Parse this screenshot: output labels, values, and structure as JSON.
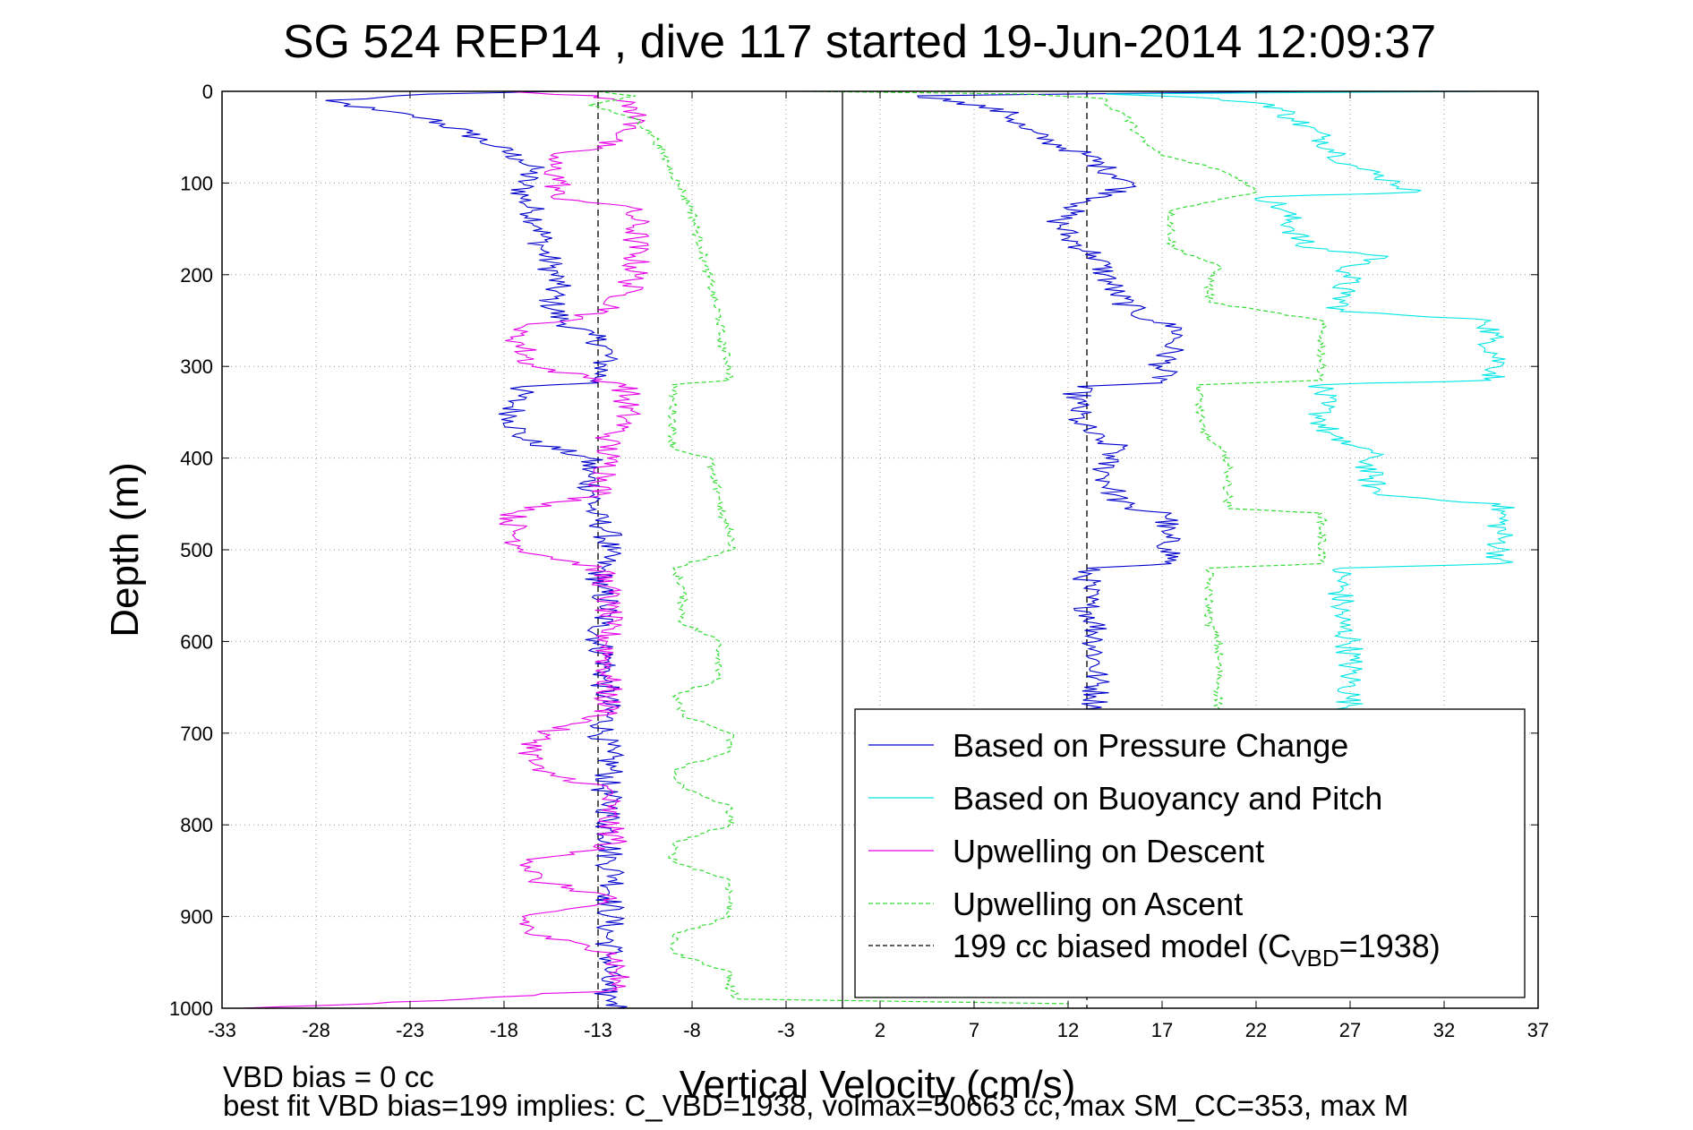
{
  "chart_data": {
    "type": "line",
    "title": "SG 524   REP14  , dive 117 started 19-Jun-2014 12:09:37",
    "xlabel": "Vertical Velocity (cm/s)",
    "ylabel": "Depth (m)",
    "xlim": [
      -33,
      37
    ],
    "ylim": [
      0,
      1000
    ],
    "y_reversed": true,
    "grid": true,
    "legend_position": "bottom-right",
    "xticks": [
      -33,
      -28,
      -23,
      -18,
      -13,
      -8,
      -3,
      2,
      7,
      12,
      17,
      22,
      27,
      32,
      37
    ],
    "yticks": [
      0,
      100,
      200,
      300,
      400,
      500,
      600,
      700,
      800,
      900,
      1000
    ],
    "vertical_lines": [
      {
        "name": "199 cc biased model (C_VBD=1938)",
        "x": -13,
        "style": "dashed",
        "color": "#000000"
      },
      {
        "name": "199 cc biased model (C_VBD=1938)",
        "x": 13,
        "style": "dashed",
        "color": "#000000"
      },
      {
        "name": "",
        "x": 0,
        "style": "solid",
        "color": "#000000"
      }
    ],
    "series": [
      {
        "name": "Based on Pressure Change",
        "color": "#0000cc",
        "style": "solid",
        "profiles": [
          {
            "depth": [
              0,
              3,
              10,
              20,
              30,
              45,
              60,
              75,
              85,
              100,
              115,
              130,
              150,
              170,
              190,
              210,
              230,
              250,
              265,
              280,
              300,
              318,
              322,
              340,
              360,
              380,
              400,
              420,
              440,
              460,
              480,
              500,
              520,
              540,
              560,
              580,
              600,
              620,
              640,
              660,
              680,
              700,
              720,
              740,
              760,
              780,
              800,
              820,
              840,
              860,
              880,
              900,
              920,
              940,
              960,
              980,
              990,
              995,
              1000
            ],
            "velocity": [
              -15,
              -22,
              -27.5,
              -25,
              -22,
              -20,
              -18.5,
              -17,
              -16.5,
              -17,
              -17,
              -16.5,
              -16,
              -16,
              -15.5,
              -15.2,
              -15.5,
              -15,
              -13.5,
              -12.5,
              -12.7,
              -13,
              -17,
              -17.5,
              -17.5,
              -17,
              -13.5,
              -13.5,
              -13.2,
              -13.3,
              -12.5,
              -12.5,
              -12.8,
              -13,
              -12.5,
              -12.8,
              -13,
              -12.5,
              -12.7,
              -12.6,
              -12.5,
              -12.8,
              -12.5,
              -12.3,
              -12.7,
              -12.3,
              -12.5,
              -12.3,
              -12.4,
              -12.0,
              -12.4,
              -12.3,
              -12.5,
              -12.3,
              -12.5,
              -12.8,
              -12.3,
              -12,
              -12
            ]
          },
          {
            "depth": [
              0,
              5,
              12,
              25,
              40,
              55,
              70,
              85,
              100,
              115,
              125,
              140,
              160,
              180,
              200,
              220,
              240,
              250,
              260,
              280,
              300,
              318,
              322,
              340,
              360,
              380,
              390,
              400,
              420,
              440,
              455,
              460,
              480,
              500,
              515,
              520,
              540,
              560,
              580,
              600,
              620,
              640,
              660,
              680
            ],
            "velocity": [
              25,
              4,
              6.5,
              9,
              9.5,
              11,
              13,
              14,
              15.5,
              14,
              12.5,
              11.5,
              12,
              13.5,
              14,
              14.5,
              15.5,
              16.5,
              18,
              17.5,
              17,
              17,
              12.5,
              12.5,
              12.5,
              13.5,
              15,
              14,
              14,
              14.5,
              15,
              17.5,
              17,
              17.5,
              17.5,
              13,
              13,
              13,
              13.5,
              13.5,
              13.5,
              13.5,
              13.5,
              13.5
            ]
          }
        ]
      },
      {
        "name": "Based on Buoyancy and Pitch",
        "color": "#00e5e5",
        "style": "solid",
        "profiles": [
          {
            "depth": [
              0,
              3,
              8,
              15,
              30,
              50,
              70,
              80,
              100,
              110,
              115,
              130,
              150,
              170,
              180,
              190,
              200,
              220,
              240,
              250,
              270,
              300,
              315,
              320,
              340,
              360,
              380,
              390,
              400,
              420,
              440,
              450,
              470,
              490,
              510,
              515,
              520,
              540,
              560,
              580,
              600,
              620,
              640,
              660,
              680
            ],
            "velocity": [
              35,
              14,
              20,
              23,
              24,
              25.5,
              26.5,
              27,
              29.5,
              30.5,
              22.5,
              23.5,
              24,
              24.5,
              29,
              27,
              27,
              26.5,
              26.5,
              34.5,
              34.5,
              35,
              34.5,
              25.5,
              25.5,
              25.5,
              26,
              28,
              28,
              28,
              28.5,
              35,
              35,
              35,
              35,
              35,
              26.5,
              26.5,
              26.5,
              26.5,
              27,
              27,
              27,
              27,
              27
            ]
          }
        ]
      },
      {
        "name": "Upwelling on Descent",
        "color": "#e600e6",
        "style": "solid",
        "profiles": [
          {
            "depth": [
              0,
              5,
              10,
              20,
              30,
              40,
              50,
              60,
              70,
              80,
              100,
              115,
              125,
              140,
              160,
              180,
              200,
              220,
              240,
              260,
              280,
              300,
              320,
              340,
              360,
              380,
              400,
              420,
              440,
              460,
              480,
              500,
              520,
              540,
              560,
              580,
              600,
              620,
              640,
              660,
              680,
              700,
              720,
              740,
              760,
              780,
              800,
              820,
              840,
              860,
              880,
              900,
              920,
              940,
              960,
              980,
              990,
              995,
              1000
            ],
            "velocity": [
              -18,
              -13,
              -12,
              -11,
              -11,
              -11,
              -12,
              -13,
              -15.5,
              -15.5,
              -15,
              -15.5,
              -11.5,
              -11,
              -11,
              -11,
              -11,
              -11.5,
              -12.5,
              -17.5,
              -17,
              -16.5,
              -11.5,
              -11.5,
              -11.5,
              -12.5,
              -12.5,
              -12.5,
              -13,
              -17.5,
              -17.5,
              -17,
              -13,
              -12.5,
              -12.5,
              -12.5,
              -12.5,
              -12.5,
              -12.5,
              -12.5,
              -12.5,
              -16,
              -16.5,
              -16.5,
              -12.5,
              -12.5,
              -12.5,
              -12,
              -16.5,
              -16.5,
              -12,
              -17,
              -16.5,
              -12,
              -12,
              -12,
              -20,
              -25,
              -32
            ]
          }
        ]
      },
      {
        "name": "Upwelling on Ascent",
        "color": "#33dd33",
        "style": "dashed",
        "profiles": [
          {
            "depth": [
              0,
              5,
              15,
              30,
              50,
              70,
              90,
              110,
              130,
              150,
              170,
              190,
              210,
              230,
              250,
              270,
              300,
              315,
              320,
              340,
              370,
              390,
              400,
              420,
              440,
              460,
              480,
              500,
              520,
              540,
              560,
              580,
              600,
              620,
              640,
              660,
              680,
              700,
              720,
              740,
              760,
              780,
              800,
              820,
              840,
              860,
              880,
              900,
              920,
              940,
              960,
              980,
              990,
              995
            ],
            "velocity": [
              -13,
              -11,
              -13.5,
              -11,
              -10,
              -9.5,
              -9,
              -8.5,
              -8,
              -7.8,
              -7.5,
              -7.3,
              -7,
              -6.8,
              -6.5,
              -6.5,
              -6,
              -6,
              -9,
              -9,
              -9,
              -9,
              -7,
              -7,
              -6.5,
              -6.5,
              -6,
              -5.8,
              -9,
              -8.5,
              -8.5,
              -8.5,
              -6.5,
              -6.5,
              -6.5,
              -9,
              -8.5,
              -6,
              -6,
              -9,
              -8.5,
              -6,
              -6,
              -9,
              -9,
              -6,
              -6,
              -6,
              -9,
              -9,
              -6,
              -6,
              -5.5,
              12
            ]
          },
          {
            "depth": [
              0,
              3,
              8,
              15,
              25,
              40,
              55,
              70,
              85,
              100,
              110,
              130,
              150,
              170,
              190,
              210,
              230,
              250,
              270,
              290,
              315,
              320,
              340,
              360,
              380,
              400,
              420,
              440,
              455,
              460,
              480,
              500,
              515,
              520,
              540,
              560,
              580,
              600,
              620,
              640,
              660,
              680
            ],
            "velocity": [
              -2,
              10,
              14,
              14,
              15,
              15.5,
              16,
              17,
              20,
              21.5,
              22,
              17.5,
              17.5,
              17.5,
              20,
              19.5,
              19.5,
              25.5,
              25.5,
              25.5,
              25.5,
              19,
              19,
              19,
              19.5,
              20.5,
              20.5,
              20.5,
              20.5,
              25.5,
              25.5,
              25.5,
              25.5,
              19.5,
              19.5,
              19.5,
              19.5,
              20,
              20,
              20,
              20,
              20
            ]
          }
        ]
      },
      {
        "name": "199 cc biased model (C_VBD=1938)",
        "color": "#000000",
        "style": "dashed",
        "profiles": []
      }
    ],
    "legend": [
      {
        "label": "Based on Pressure Change",
        "color": "#0000cc",
        "style": "solid"
      },
      {
        "label": "Based on Buoyancy and Pitch",
        "color": "#00e5e5",
        "style": "solid"
      },
      {
        "label": "Upwelling on Descent",
        "color": "#e600e6",
        "style": "solid"
      },
      {
        "label": "Upwelling on Ascent",
        "color": "#33dd33",
        "style": "dashed"
      },
      {
        "label_main": "199 cc biased model (C",
        "label_sub": "VBD",
        "label_end": "=1938)",
        "color": "#000000",
        "style": "dashed"
      }
    ]
  },
  "notes": {
    "line1": "VBD bias = 0 cc",
    "line2": "best fit VBD bias=199 implies: C_VBD=1938, volmax=50663 cc, max SM_CC=353, max M"
  }
}
